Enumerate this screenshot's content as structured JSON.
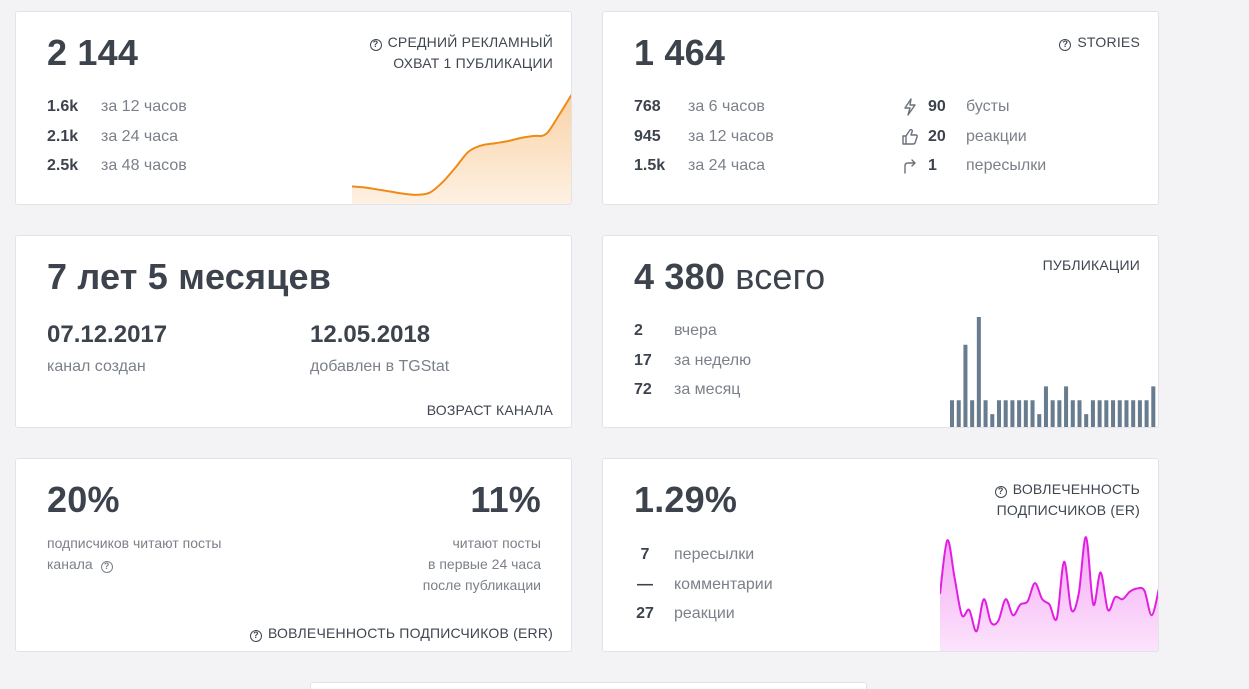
{
  "reach": {
    "value": "2 144",
    "label_line1": "СРЕДНИЙ РЕКЛАМНЫЙ",
    "label_line2": "ОХВАТ 1 ПУБЛИКАЦИИ",
    "rows": [
      {
        "value": "1.6k",
        "label": "за 12 часов"
      },
      {
        "value": "2.1k",
        "label": "за 24 часа"
      },
      {
        "value": "2.5k",
        "label": "за 48 часов"
      }
    ],
    "chart_color": "#f08a16",
    "trend": [
      0.12,
      0.11,
      0.09,
      0.07,
      0.05,
      0.04,
      0.06,
      0.16,
      0.3,
      0.45,
      0.51,
      0.53,
      0.55,
      0.58,
      0.6,
      0.62,
      0.8,
      1.0
    ]
  },
  "stories": {
    "value": "1 464",
    "label": "STORIES",
    "rows": [
      {
        "value": "768",
        "label": "за 6 часов"
      },
      {
        "value": "945",
        "label": "за 12 часов"
      },
      {
        "value": "1.5k",
        "label": "за 24 часа"
      }
    ],
    "stats": [
      {
        "icon": "lightning-icon",
        "value": "90",
        "label": "бусты"
      },
      {
        "icon": "thumbs-up-icon",
        "value": "20",
        "label": "реакции"
      },
      {
        "icon": "forward-arrow-icon",
        "value": "1",
        "label": "пересылки"
      }
    ]
  },
  "age": {
    "value": "7 лет 5 месяцев",
    "created_date": "07.12.2017",
    "created_label": "канал создан",
    "added_date": "12.05.2018",
    "added_label": "добавлен в TGStat",
    "footer": "ВОЗРАСТ КАНАЛА"
  },
  "publications": {
    "value": "4 380",
    "value_suffix": "всего",
    "label": "ПУБЛИКАЦИИ",
    "rows": [
      {
        "value": "2",
        "label": "вчера"
      },
      {
        "value": "17",
        "label": "за неделю"
      },
      {
        "value": "72",
        "label": "за месяц"
      }
    ],
    "bar_color": "#687c8f",
    "bars": [
      2,
      2,
      6,
      2,
      8,
      2,
      1,
      2,
      2,
      2,
      2,
      2,
      2,
      1,
      3,
      2,
      2,
      3,
      2,
      2,
      1,
      2,
      2,
      2,
      2,
      2,
      2,
      2,
      2,
      2,
      3
    ]
  },
  "err": {
    "value1": "20%",
    "label1_line1": "подписчиков читают посты",
    "label1_line2": "канала",
    "value2": "11%",
    "label2_line1": "читают посты",
    "label2_line2": "в первые 24 часа",
    "label2_line3": "после публикации",
    "footer": "ВОВЛЕЧЕННОСТЬ ПОДПИСЧИКОВ (ERR)"
  },
  "er": {
    "value": "1.29%",
    "label_line1": "ВОВЛЕЧЕННОСТЬ",
    "label_line2": "ПОДПИСЧИКОВ (ER)",
    "rows": [
      {
        "value": "7",
        "label": "пересылки"
      },
      {
        "value": "—",
        "label": "комментарии"
      },
      {
        "value": "27",
        "label": "реакции"
      }
    ],
    "chart_color": "#e31ee3",
    "trend": [
      0.45,
      0.95,
      0.6,
      0.25,
      0.3,
      0.1,
      0.4,
      0.18,
      0.2,
      0.4,
      0.25,
      0.35,
      0.38,
      0.55,
      0.4,
      0.35,
      0.22,
      0.75,
      0.3,
      0.45,
      0.98,
      0.35,
      0.65,
      0.3,
      0.42,
      0.4,
      0.47,
      0.5,
      0.48,
      0.25,
      0.5
    ]
  }
}
